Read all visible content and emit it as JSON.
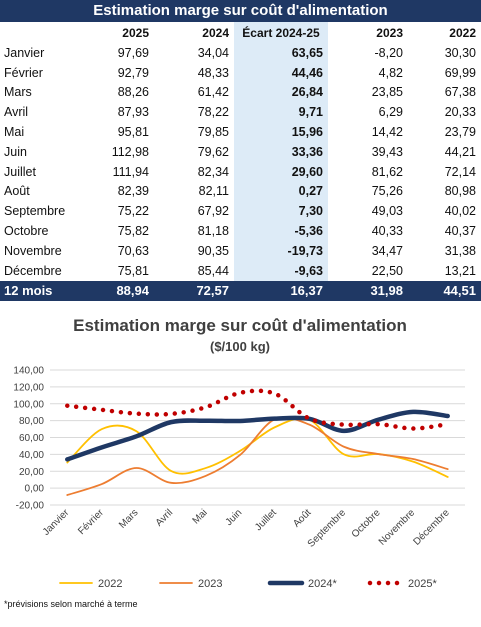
{
  "table": {
    "title": "Estimation marge sur coût d'alimentation",
    "headers": [
      "",
      "2025",
      "2024",
      "Écart 2024-25",
      "2023",
      "2022"
    ],
    "rows": [
      {
        "month": "Janvier",
        "v2025": "97,69",
        "v2024": "34,04",
        "ecart": "63,65",
        "v2023": "-8,20",
        "v2022": "30,30"
      },
      {
        "month": "Février",
        "v2025": "92,79",
        "v2024": "48,33",
        "ecart": "44,46",
        "v2023": "4,82",
        "v2022": "69,99"
      },
      {
        "month": "Mars",
        "v2025": "88,26",
        "v2024": "61,42",
        "ecart": "26,84",
        "v2023": "23,85",
        "v2022": "67,38"
      },
      {
        "month": "Avril",
        "v2025": "87,93",
        "v2024": "78,22",
        "ecart": "9,71",
        "v2023": "6,29",
        "v2022": "20,33"
      },
      {
        "month": "Mai",
        "v2025": "95,81",
        "v2024": "79,85",
        "ecart": "15,96",
        "v2023": "14,42",
        "v2022": "23,79"
      },
      {
        "month": "Juin",
        "v2025": "112,98",
        "v2024": "79,62",
        "ecart": "33,36",
        "v2023": "39,43",
        "v2022": "44,21"
      },
      {
        "month": "Juillet",
        "v2025": "111,94",
        "v2024": "82,34",
        "ecart": "29,60",
        "v2023": "81,62",
        "v2022": "72,14"
      },
      {
        "month": "Août",
        "v2025": "82,39",
        "v2024": "82,11",
        "ecart": "0,27",
        "v2023": "75,26",
        "v2022": "80,98"
      },
      {
        "month": "Septembre",
        "v2025": "75,22",
        "v2024": "67,92",
        "ecart": "7,30",
        "v2023": "49,03",
        "v2022": "40,02"
      },
      {
        "month": "Octobre",
        "v2025": "75,82",
        "v2024": "81,18",
        "ecart": "-5,36",
        "v2023": "40,33",
        "v2022": "40,37"
      },
      {
        "month": "Novembre",
        "v2025": "70,63",
        "v2024": "90,35",
        "ecart": "-19,73",
        "v2023": "34,47",
        "v2022": "31,38"
      },
      {
        "month": "Décembre",
        "v2025": "75,81",
        "v2024": "85,44",
        "ecart": "-9,63",
        "v2023": "22,50",
        "v2022": "13,21"
      }
    ],
    "total": {
      "month": "12 mois",
      "v2025": "88,94",
      "v2024": "72,57",
      "ecart": "16,37",
      "v2023": "31,98",
      "v2022": "44,51"
    }
  },
  "chart_data": {
    "type": "line",
    "title": "Estimation  marge sur coût d'alimentation",
    "subtitle": "($/100 kg)",
    "categories": [
      "Janvier",
      "Février",
      "Mars",
      "Avril",
      "Mai",
      "Juin",
      "Juillet",
      "Août",
      "Septembre",
      "Octobre",
      "Novembre",
      "Décembre"
    ],
    "ylim": [
      -20,
      140
    ],
    "yticks": [
      "-20,00",
      "0,00",
      "20,00",
      "40,00",
      "60,00",
      "80,00",
      "100,00",
      "120,00",
      "140,00"
    ],
    "grid": true,
    "legend_position": "bottom",
    "series": [
      {
        "name": "2022",
        "color": "#ffc000",
        "style": "solid-thin",
        "values": [
          30.3,
          69.99,
          67.38,
          20.33,
          23.79,
          44.21,
          72.14,
          80.98,
          40.02,
          40.37,
          31.38,
          13.21
        ]
      },
      {
        "name": "2023",
        "color": "#ed7d31",
        "style": "solid-thin",
        "values": [
          -8.2,
          4.82,
          23.85,
          6.29,
          14.42,
          39.43,
          81.62,
          75.26,
          49.03,
          40.33,
          34.47,
          22.5
        ]
      },
      {
        "name": "2024*",
        "color": "#1f3864",
        "style": "solid-thick",
        "values": [
          34.04,
          48.33,
          61.42,
          78.22,
          79.85,
          79.62,
          82.34,
          82.11,
          67.92,
          81.18,
          90.35,
          85.44
        ]
      },
      {
        "name": "2025*",
        "color": "#c00000",
        "style": "dotted",
        "values": [
          97.69,
          92.79,
          88.26,
          87.93,
          95.81,
          112.98,
          111.94,
          82.39,
          75.22,
          75.82,
          70.63,
          75.81
        ]
      }
    ],
    "footnote": "*prévisions selon marché à terme"
  }
}
